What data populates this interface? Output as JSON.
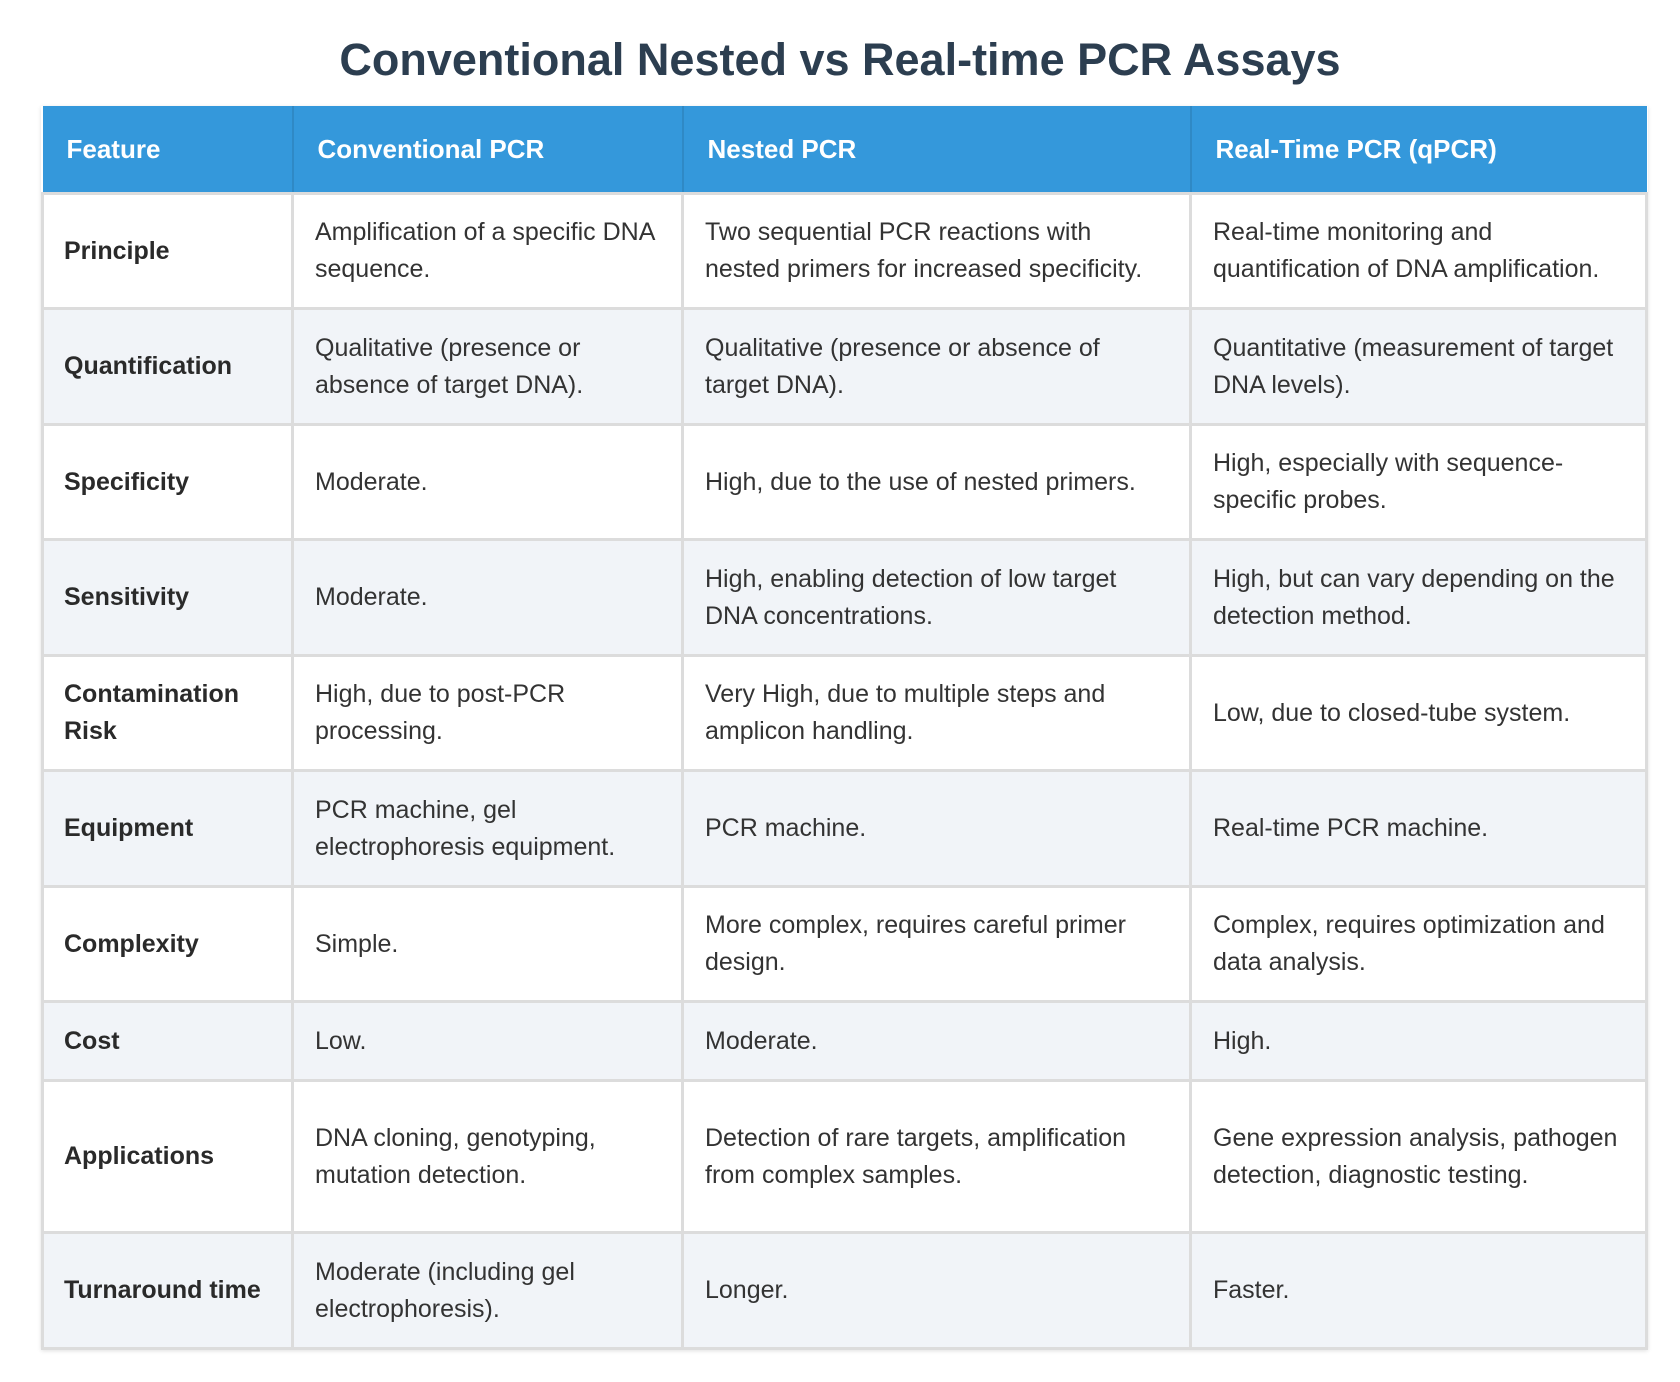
{
  "title": "Conventional Nested vs Real-time PCR Assays",
  "headers": [
    "Feature",
    "Conventional PCR",
    "Nested PCR",
    "Real-Time PCR (qPCR)"
  ],
  "rows": [
    {
      "feature": "Principle",
      "conventional": "Amplification of a specific DNA sequence.",
      "nested": "Two sequential PCR reactions with nested primers for increased specificity.",
      "realtime": "Real-time monitoring and quantification of DNA amplification."
    },
    {
      "feature": "Quantification",
      "conventional": "Qualitative (presence or absence of target DNA).",
      "nested": "Qualitative (presence or absence of target DNA).",
      "realtime": "Quantitative (measurement of target DNA levels)."
    },
    {
      "feature": "Specificity",
      "conventional": "Moderate.",
      "nested": "High, due to the use of nested primers.",
      "realtime": "High, especially with sequence-specific probes."
    },
    {
      "feature": "Sensitivity",
      "conventional": "Moderate.",
      "nested": "High, enabling detection of low target DNA concentrations.",
      "realtime": "High, but can vary depending on the detection method."
    },
    {
      "feature": "Contamination Risk",
      "conventional": "High, due to post-PCR processing.",
      "nested": "Very High, due to multiple steps and amplicon handling.",
      "realtime": "Low, due to closed-tube system."
    },
    {
      "feature": "Equipment",
      "conventional": "PCR machine, gel electrophoresis equipment.",
      "nested": "PCR machine.",
      "realtime": "Real-time PCR machine."
    },
    {
      "feature": "Complexity",
      "conventional": "Simple.",
      "nested": "More complex, requires careful primer design.",
      "realtime": "Complex, requires optimization and data analysis."
    },
    {
      "feature": "Cost",
      "conventional": "Low.",
      "nested": "Moderate.",
      "realtime": "High."
    },
    {
      "feature": "Applications",
      "conventional": "DNA cloning, genotyping, mutation detection.",
      "nested": "Detection of rare targets, amplification from complex samples.",
      "realtime": "Gene expression analysis, pathogen detection, diagnostic testing."
    },
    {
      "feature": "Turnaround time",
      "conventional": "Moderate (including gel electrophoresis).",
      "nested": "Longer.",
      "realtime": "Faster."
    }
  ],
  "colors": {
    "header_bg": "#3498db",
    "title": "#2c3e50",
    "alt_row": "#f1f4f8"
  }
}
